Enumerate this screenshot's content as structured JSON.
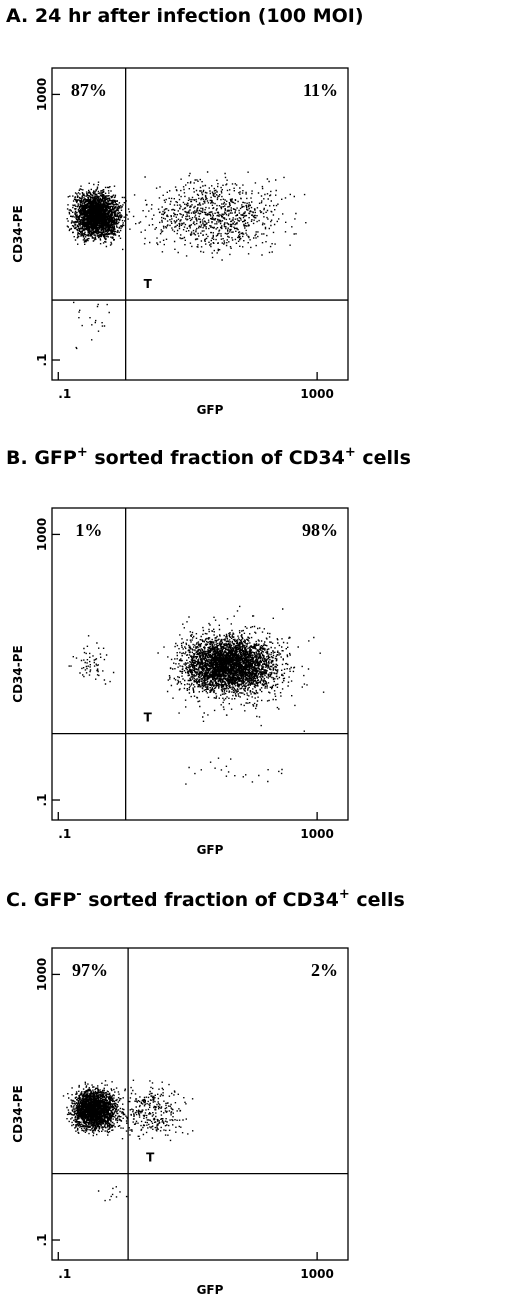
{
  "chart_data": [
    {
      "type": "density",
      "title": [
        "A.  24 hr after infection (100 MOI)"
      ],
      "x_label": "GFP",
      "y_label": "CD34-PE",
      "log": true,
      "xlim": [
        0.08,
        3000
      ],
      "ylim": [
        0.05,
        2500
      ],
      "xticks": [
        {
          "value": 0.1,
          "label": ".1"
        },
        1000
      ],
      "yticks": [
        {
          "value": 0.1,
          "label": ".1"
        },
        1000
      ],
      "gate": {
        "x": 1.1,
        "y": 0.8
      },
      "annotation": "T",
      "quadrant_values": [
        87,
        11
      ],
      "value_labels": [
        "87%",
        "11%"
      ],
      "clouds": [
        {
          "x": [
            0.1,
            1.5
          ],
          "y": [
            4,
            60
          ]
        },
        {
          "x": [
            0.5,
            1500
          ],
          "y": [
            2,
            120
          ]
        },
        {
          "x": [
            0.1,
            1
          ],
          "y": [
            0.1,
            2
          ]
        }
      ]
    },
    {
      "type": "density",
      "title": [
        "B.  GFP",
        "+",
        " sorted fraction of CD34",
        "+",
        " cells"
      ],
      "x_label": "GFP",
      "y_label": "CD34-PE",
      "log": true,
      "xlim": [
        0.08,
        3000
      ],
      "ylim": [
        0.05,
        2500
      ],
      "xticks": [
        {
          "value": 0.1,
          "label": ".1"
        },
        1000
      ],
      "yticks": [
        {
          "value": 0.1,
          "label": ".1"
        },
        1000
      ],
      "gate": {
        "x": 1.1,
        "y": 1
      },
      "annotation": "T",
      "quadrant_values": [
        1,
        98
      ],
      "value_labels": [
        "1%",
        "98%"
      ],
      "clouds": [
        {
          "x": [
            3,
            600
          ],
          "y": [
            2.5,
            50
          ]
        },
        {
          "x": [
            1.5,
            2000
          ],
          "y": [
            0.8,
            150
          ]
        },
        {
          "x": [
            0.1,
            1
          ],
          "y": [
            3,
            40
          ]
        },
        {
          "x": [
            1,
            2000
          ],
          "y": [
            0.1,
            0.7
          ]
        }
      ]
    },
    {
      "type": "density",
      "title": [
        "C.  GFP",
        "-",
        " sorted fraction of CD34",
        "+",
        " cells"
      ],
      "x_label": "GFP",
      "y_label": "CD34-PE",
      "log": true,
      "xlim": [
        0.08,
        3000
      ],
      "ylim": [
        0.05,
        2500
      ],
      "xticks": [
        {
          "value": 0.1,
          "label": ".1"
        },
        1000
      ],
      "yticks": [
        {
          "value": 0.1,
          "label": ".1"
        },
        1000
      ],
      "gate": {
        "x": 1.2,
        "y": 1
      },
      "annotation": "T",
      "quadrant_values": [
        97,
        2
      ],
      "value_labels": [
        "97%",
        "2%"
      ],
      "clouds": [
        {
          "x": [
            0.1,
            1.3
          ],
          "y": [
            3,
            30
          ]
        },
        {
          "x": [
            0.3,
            25
          ],
          "y": [
            2,
            40
          ]
        },
        {
          "x": [
            0.2,
            2
          ],
          "y": [
            0.3,
            0.8
          ]
        }
      ]
    }
  ]
}
